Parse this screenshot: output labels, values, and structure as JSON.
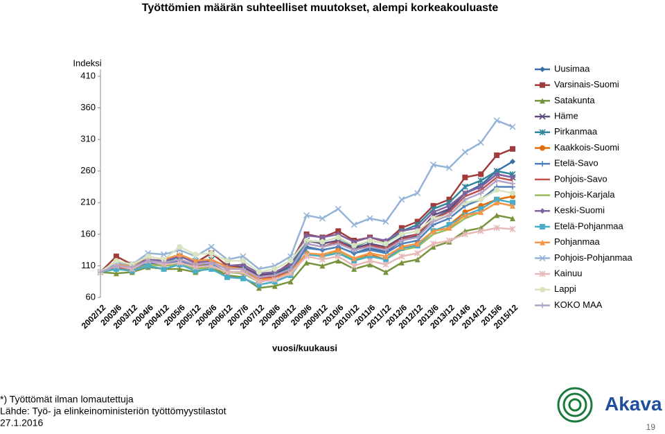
{
  "chart_data": {
    "type": "line",
    "title": "Työttömien määrän suhteelliset muutokset, alempi korkeakouluaste",
    "y_label": "Indeksi",
    "x_label": "vuosi/kuukausi",
    "categories": [
      "2002/12",
      "2003/6",
      "2003/12",
      "2004/6",
      "2004/12",
      "2005/6",
      "2005/12",
      "2006/6",
      "2006/12",
      "2007/6",
      "2007/12",
      "2008/6",
      "2008/12",
      "2009/6",
      "2009/12",
      "2010/6",
      "2010/12",
      "2011/6",
      "2011/12",
      "2012/6",
      "2012/12",
      "2013/6",
      "2013/12",
      "2014/6",
      "2014/12",
      "2015/6",
      "2015/12"
    ],
    "ylim": [
      60,
      410
    ],
    "yticks": [
      60,
      110,
      160,
      210,
      260,
      310,
      360,
      410
    ],
    "legend": "right",
    "series": [
      {
        "name": "Uusimaa",
        "color": "#3a6ea5",
        "marker": "diamond",
        "values": [
          100,
          108,
          105,
          112,
          110,
          115,
          108,
          110,
          100,
          98,
          85,
          88,
          98,
          140,
          135,
          140,
          130,
          138,
          132,
          150,
          158,
          185,
          198,
          225,
          238,
          260,
          275
        ]
      },
      {
        "name": "Varsinais-Suomi",
        "color": "#a03c3c",
        "marker": "square",
        "values": [
          100,
          125,
          112,
          120,
          118,
          125,
          115,
          130,
          110,
          108,
          95,
          98,
          115,
          160,
          155,
          165,
          150,
          155,
          148,
          170,
          180,
          205,
          215,
          250,
          255,
          285,
          295
        ]
      },
      {
        "name": "Satakunta",
        "color": "#77933c",
        "marker": "triangle",
        "values": [
          100,
          98,
          100,
          108,
          105,
          105,
          100,
          108,
          95,
          92,
          75,
          78,
          85,
          115,
          110,
          118,
          105,
          112,
          100,
          115,
          120,
          140,
          148,
          165,
          170,
          190,
          185
        ]
      },
      {
        "name": "Häme",
        "color": "#604a7b",
        "marker": "x",
        "values": [
          100,
          112,
          108,
          118,
          112,
          118,
          110,
          115,
          105,
          108,
          95,
          98,
          110,
          150,
          145,
          150,
          138,
          145,
          140,
          155,
          160,
          190,
          200,
          225,
          235,
          255,
          250
        ]
      },
      {
        "name": "Pirkanmaa",
        "color": "#31859c",
        "marker": "star",
        "values": [
          100,
          115,
          110,
          120,
          115,
          125,
          118,
          120,
          108,
          105,
          90,
          95,
          108,
          150,
          148,
          155,
          140,
          150,
          145,
          165,
          175,
          200,
          210,
          235,
          245,
          260,
          255
        ]
      },
      {
        "name": "Kaakkois-Suomi",
        "color": "#e46c0a",
        "marker": "circle",
        "values": [
          100,
          105,
          105,
          115,
          112,
          118,
          110,
          112,
          100,
          100,
          85,
          90,
          100,
          130,
          125,
          135,
          120,
          128,
          120,
          140,
          145,
          165,
          175,
          195,
          205,
          215,
          220
        ]
      },
      {
        "name": "Etelä-Savo",
        "color": "#4f81bd",
        "marker": "plus",
        "values": [
          100,
          110,
          105,
          115,
          112,
          118,
          108,
          112,
          100,
          100,
          88,
          92,
          102,
          138,
          135,
          140,
          130,
          135,
          130,
          145,
          150,
          175,
          185,
          205,
          215,
          235,
          235
        ]
      },
      {
        "name": "Pohjois-Savo",
        "color": "#c0504d",
        "marker": "none",
        "values": [
          100,
          108,
          105,
          118,
          115,
          120,
          112,
          115,
          105,
          105,
          90,
          92,
          105,
          145,
          140,
          148,
          135,
          142,
          138,
          152,
          160,
          185,
          195,
          220,
          230,
          250,
          245
        ]
      },
      {
        "name": "Pohjois-Karjala",
        "color": "#9bbb59",
        "marker": "none",
        "values": [
          100,
          105,
          102,
          112,
          110,
          112,
          105,
          108,
          100,
          98,
          85,
          88,
          98,
          130,
          125,
          132,
          120,
          125,
          120,
          135,
          140,
          160,
          168,
          185,
          195,
          210,
          205
        ]
      },
      {
        "name": "Keski-Suomi",
        "color": "#8064a2",
        "marker": "diamond",
        "values": [
          100,
          110,
          108,
          120,
          118,
          125,
          115,
          118,
          110,
          112,
          98,
          100,
          112,
          158,
          155,
          160,
          148,
          155,
          150,
          165,
          170,
          195,
          205,
          225,
          235,
          255,
          250
        ]
      },
      {
        "name": "Etelä-Pohjanmaa",
        "color": "#4bacc6",
        "marker": "square",
        "values": [
          100,
          105,
          102,
          110,
          105,
          112,
          102,
          105,
          92,
          90,
          80,
          85,
          95,
          128,
          125,
          130,
          118,
          125,
          120,
          138,
          142,
          165,
          175,
          190,
          200,
          215,
          210
        ]
      },
      {
        "name": "Pohjanmaa",
        "color": "#f79646",
        "marker": "triangle",
        "values": [
          100,
          112,
          110,
          125,
          120,
          128,
          118,
          120,
          108,
          105,
          88,
          90,
          100,
          130,
          128,
          135,
          122,
          130,
          125,
          140,
          145,
          165,
          170,
          190,
          195,
          210,
          205
        ]
      },
      {
        "name": "Pohjois-Pohjanmaa",
        "color": "#95b3d7",
        "marker": "x",
        "values": [
          100,
          115,
          112,
          130,
          128,
          135,
          125,
          140,
          120,
          125,
          105,
          110,
          125,
          190,
          185,
          200,
          175,
          185,
          180,
          215,
          225,
          270,
          265,
          290,
          305,
          340,
          330
        ]
      },
      {
        "name": "Kainuu",
        "color": "#e6b9b8",
        "marker": "star",
        "values": [
          100,
          110,
          105,
          118,
          112,
          115,
          108,
          110,
          100,
          100,
          85,
          88,
          98,
          125,
          120,
          125,
          110,
          118,
          112,
          125,
          130,
          145,
          150,
          160,
          165,
          170,
          168
        ]
      },
      {
        "name": "Lappi",
        "color": "#d7e4bd",
        "marker": "circle",
        "values": [
          100,
          118,
          112,
          125,
          120,
          140,
          128,
          130,
          118,
          118,
          100,
          105,
          118,
          150,
          148,
          155,
          142,
          150,
          145,
          160,
          165,
          185,
          190,
          210,
          215,
          230,
          225
        ]
      },
      {
        "name": "KOKO MAA",
        "color": "#b3a2c7",
        "marker": "plus",
        "values": [
          100,
          110,
          108,
          118,
          115,
          120,
          112,
          115,
          105,
          105,
          92,
          95,
          105,
          145,
          140,
          145,
          135,
          140,
          135,
          150,
          155,
          180,
          190,
          215,
          225,
          245,
          240
        ]
      }
    ]
  },
  "footer": {
    "notes": [
      "*) Työttömät ilman lomautettuja",
      "Lähde: Työ- ja elinkeinoministeriön työttömyystilastot",
      "27.1.2016"
    ],
    "logo_text": "Akava",
    "page_number": "19"
  }
}
